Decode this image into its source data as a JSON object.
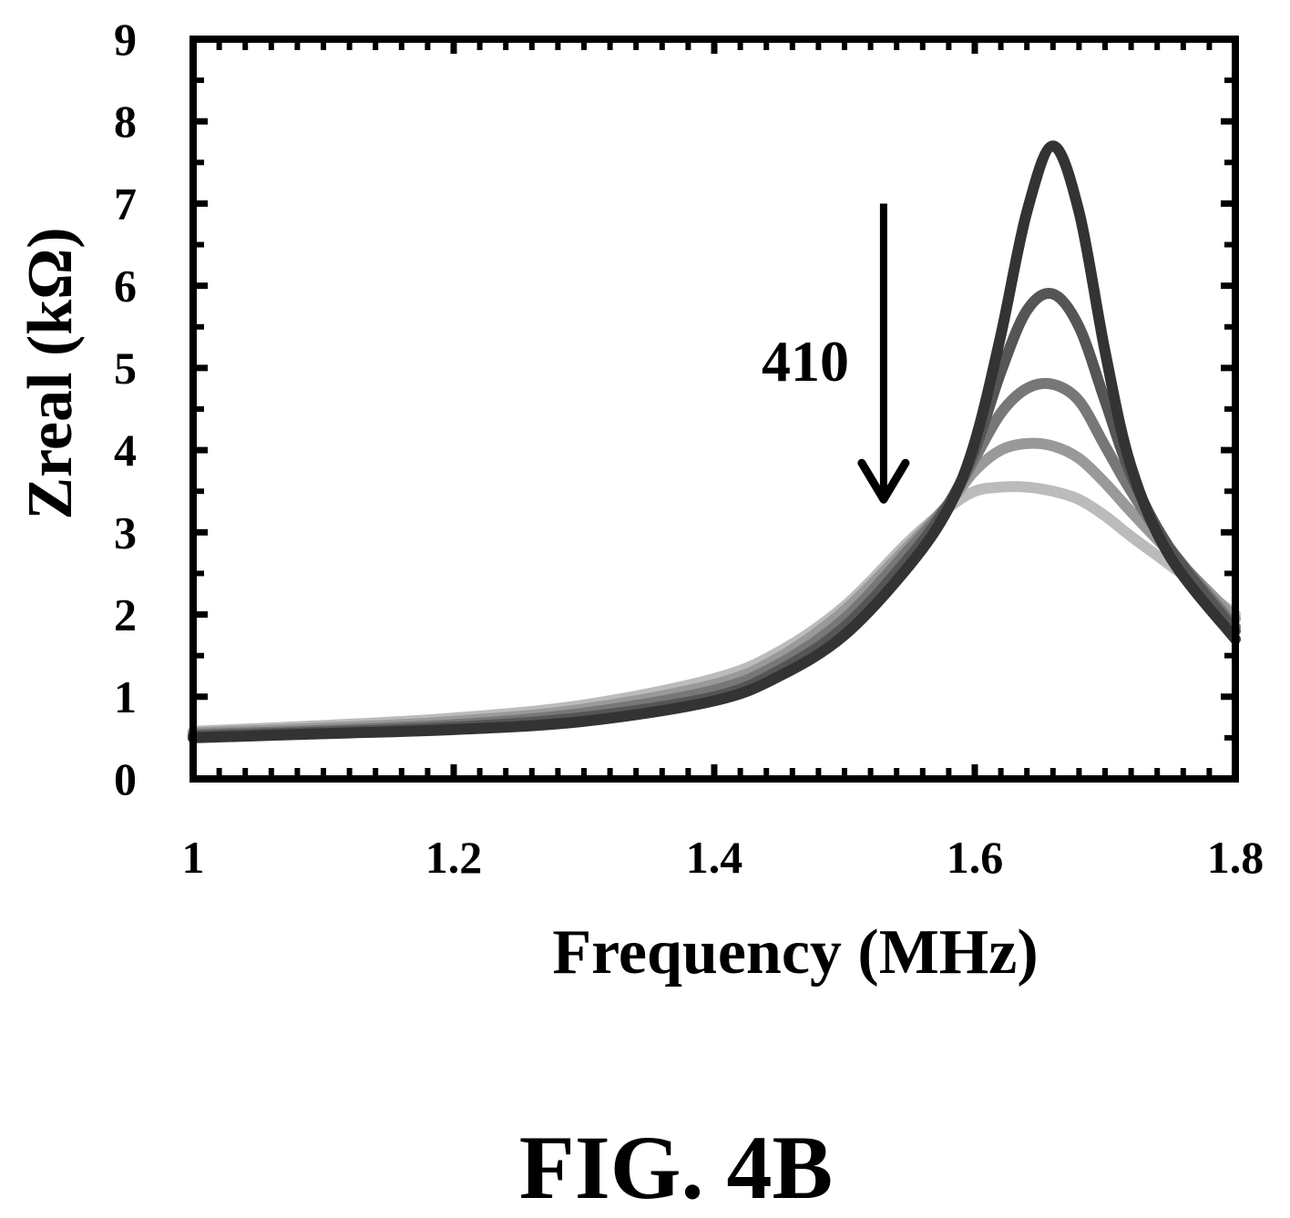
{
  "chart_data": {
    "type": "line",
    "xlabel": "Frequency (MHz)",
    "ylabel": "Zreal (kΩ)",
    "xlim": [
      1,
      1.8
    ],
    "ylim": [
      0,
      9
    ],
    "x_ticks": [
      "1",
      "1.2",
      "1.4",
      "1.6",
      "1.8"
    ],
    "y_ticks": [
      "0",
      "1",
      "2",
      "3",
      "4",
      "5",
      "6",
      "7",
      "8",
      "9"
    ],
    "grid": false,
    "annotation": {
      "label": "410",
      "arrow_x": 1.53,
      "arrow_from_y": 7.0,
      "arrow_to_y": 3.4
    },
    "series": [
      {
        "color": "#333333",
        "x": [
          1.0,
          1.1,
          1.2,
          1.3,
          1.4,
          1.45,
          1.5,
          1.55,
          1.58,
          1.6,
          1.62,
          1.64,
          1.66,
          1.68,
          1.7,
          1.72,
          1.75,
          1.8
        ],
        "y": [
          0.5,
          0.55,
          0.6,
          0.7,
          0.95,
          1.25,
          1.75,
          2.6,
          3.3,
          4.1,
          5.4,
          6.9,
          7.7,
          6.9,
          5.2,
          3.8,
          2.7,
          1.7
        ]
      },
      {
        "color": "#555555",
        "x": [
          1.0,
          1.1,
          1.2,
          1.3,
          1.4,
          1.45,
          1.5,
          1.55,
          1.58,
          1.6,
          1.62,
          1.64,
          1.66,
          1.68,
          1.7,
          1.72,
          1.75,
          1.8
        ],
        "y": [
          0.52,
          0.57,
          0.63,
          0.75,
          1.0,
          1.32,
          1.85,
          2.7,
          3.35,
          4.0,
          4.95,
          5.7,
          5.9,
          5.5,
          4.6,
          3.7,
          2.8,
          1.8
        ]
      },
      {
        "color": "#777777",
        "x": [
          1.0,
          1.1,
          1.2,
          1.3,
          1.4,
          1.45,
          1.5,
          1.55,
          1.58,
          1.6,
          1.62,
          1.64,
          1.66,
          1.68,
          1.7,
          1.72,
          1.75,
          1.8
        ],
        "y": [
          0.54,
          0.59,
          0.66,
          0.8,
          1.08,
          1.4,
          1.95,
          2.8,
          3.35,
          3.9,
          4.45,
          4.75,
          4.8,
          4.6,
          4.05,
          3.5,
          2.8,
          1.85
        ]
      },
      {
        "color": "#999999",
        "x": [
          1.0,
          1.1,
          1.2,
          1.3,
          1.4,
          1.45,
          1.5,
          1.55,
          1.58,
          1.6,
          1.62,
          1.64,
          1.66,
          1.68,
          1.7,
          1.72,
          1.75,
          1.8
        ],
        "y": [
          0.56,
          0.62,
          0.7,
          0.85,
          1.15,
          1.48,
          2.05,
          2.85,
          3.35,
          3.75,
          4.0,
          4.08,
          4.05,
          3.9,
          3.6,
          3.25,
          2.75,
          1.95
        ]
      },
      {
        "color": "#bbbbbb",
        "x": [
          1.0,
          1.1,
          1.2,
          1.3,
          1.4,
          1.45,
          1.5,
          1.55,
          1.58,
          1.6,
          1.62,
          1.64,
          1.66,
          1.68,
          1.7,
          1.72,
          1.75,
          1.8
        ],
        "y": [
          0.58,
          0.65,
          0.74,
          0.9,
          1.22,
          1.55,
          2.1,
          2.9,
          3.3,
          3.5,
          3.55,
          3.55,
          3.5,
          3.4,
          3.2,
          2.95,
          2.6,
          2.0
        ]
      }
    ]
  },
  "figure": {
    "caption": "FIG. 4B"
  }
}
